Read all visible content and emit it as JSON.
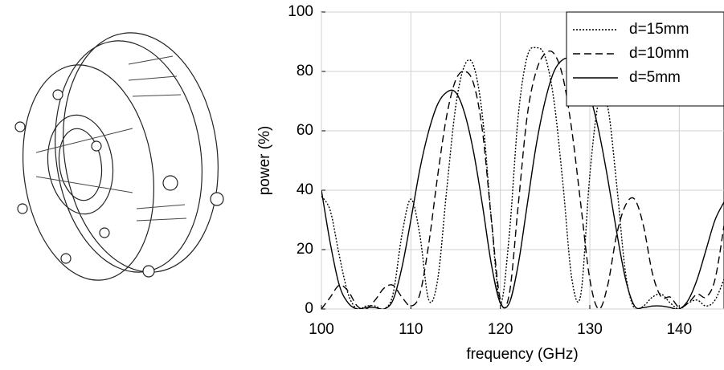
{
  "chart_data": {
    "type": "line",
    "xlabel": "frequency (GHz)",
    "ylabel": "power (%)",
    "x": [
      100,
      101,
      102,
      103,
      104,
      105,
      106,
      107,
      108,
      109,
      110,
      111,
      112,
      113,
      114,
      115,
      116,
      117,
      118,
      119,
      120,
      121,
      122,
      123,
      124,
      125,
      126,
      127,
      128,
      129,
      130,
      131,
      132,
      133,
      134,
      135,
      136,
      137,
      138,
      139,
      140,
      141,
      142,
      143,
      144,
      145
    ],
    "series": [
      {
        "name": "d=15mm",
        "color": "#000000",
        "linestyle": "dotted",
        "values": [
          38,
          33,
          18,
          5,
          0,
          1,
          1,
          0,
          5,
          25,
          37,
          25,
          3,
          10,
          40,
          68,
          82,
          82,
          65,
          30,
          2,
          25,
          65,
          85,
          88,
          85,
          70,
          42,
          10,
          5,
          45,
          70,
          68,
          42,
          12,
          0,
          1,
          4,
          5,
          2,
          0,
          2,
          3,
          1,
          3,
          10
        ]
      },
      {
        "name": "d=10mm",
        "color": "#000000",
        "linestyle": "dashed",
        "values": [
          0,
          4,
          8,
          6,
          1,
          0,
          3,
          7,
          8,
          4,
          1,
          5,
          22,
          45,
          65,
          77,
          80,
          76,
          60,
          30,
          3,
          5,
          35,
          65,
          80,
          86,
          86,
          78,
          60,
          35,
          10,
          0,
          8,
          25,
          35,
          37,
          28,
          12,
          4,
          4,
          0.5,
          2,
          5,
          4,
          10,
          28
        ]
      },
      {
        "name": "d=5mm",
        "color": "#000000",
        "linestyle": "solid",
        "values": [
          40,
          22,
          8,
          2,
          0,
          0.5,
          0.5,
          0,
          3,
          14,
          30,
          47,
          60,
          69,
          73,
          73,
          66,
          53,
          35,
          15,
          2,
          2,
          15,
          35,
          55,
          70,
          80,
          84,
          84,
          80,
          72,
          60,
          44,
          26,
          10,
          1,
          0.5,
          1,
          1,
          0.5,
          0,
          3,
          10,
          20,
          30,
          36
        ]
      }
    ],
    "xlim": [
      100,
      145
    ],
    "ylim": [
      0,
      100
    ],
    "xticks": [
      100,
      110,
      120,
      130,
      140
    ],
    "yticks": [
      0,
      20,
      40,
      60,
      80,
      100
    ],
    "grid": true,
    "legend": "upper right"
  }
}
